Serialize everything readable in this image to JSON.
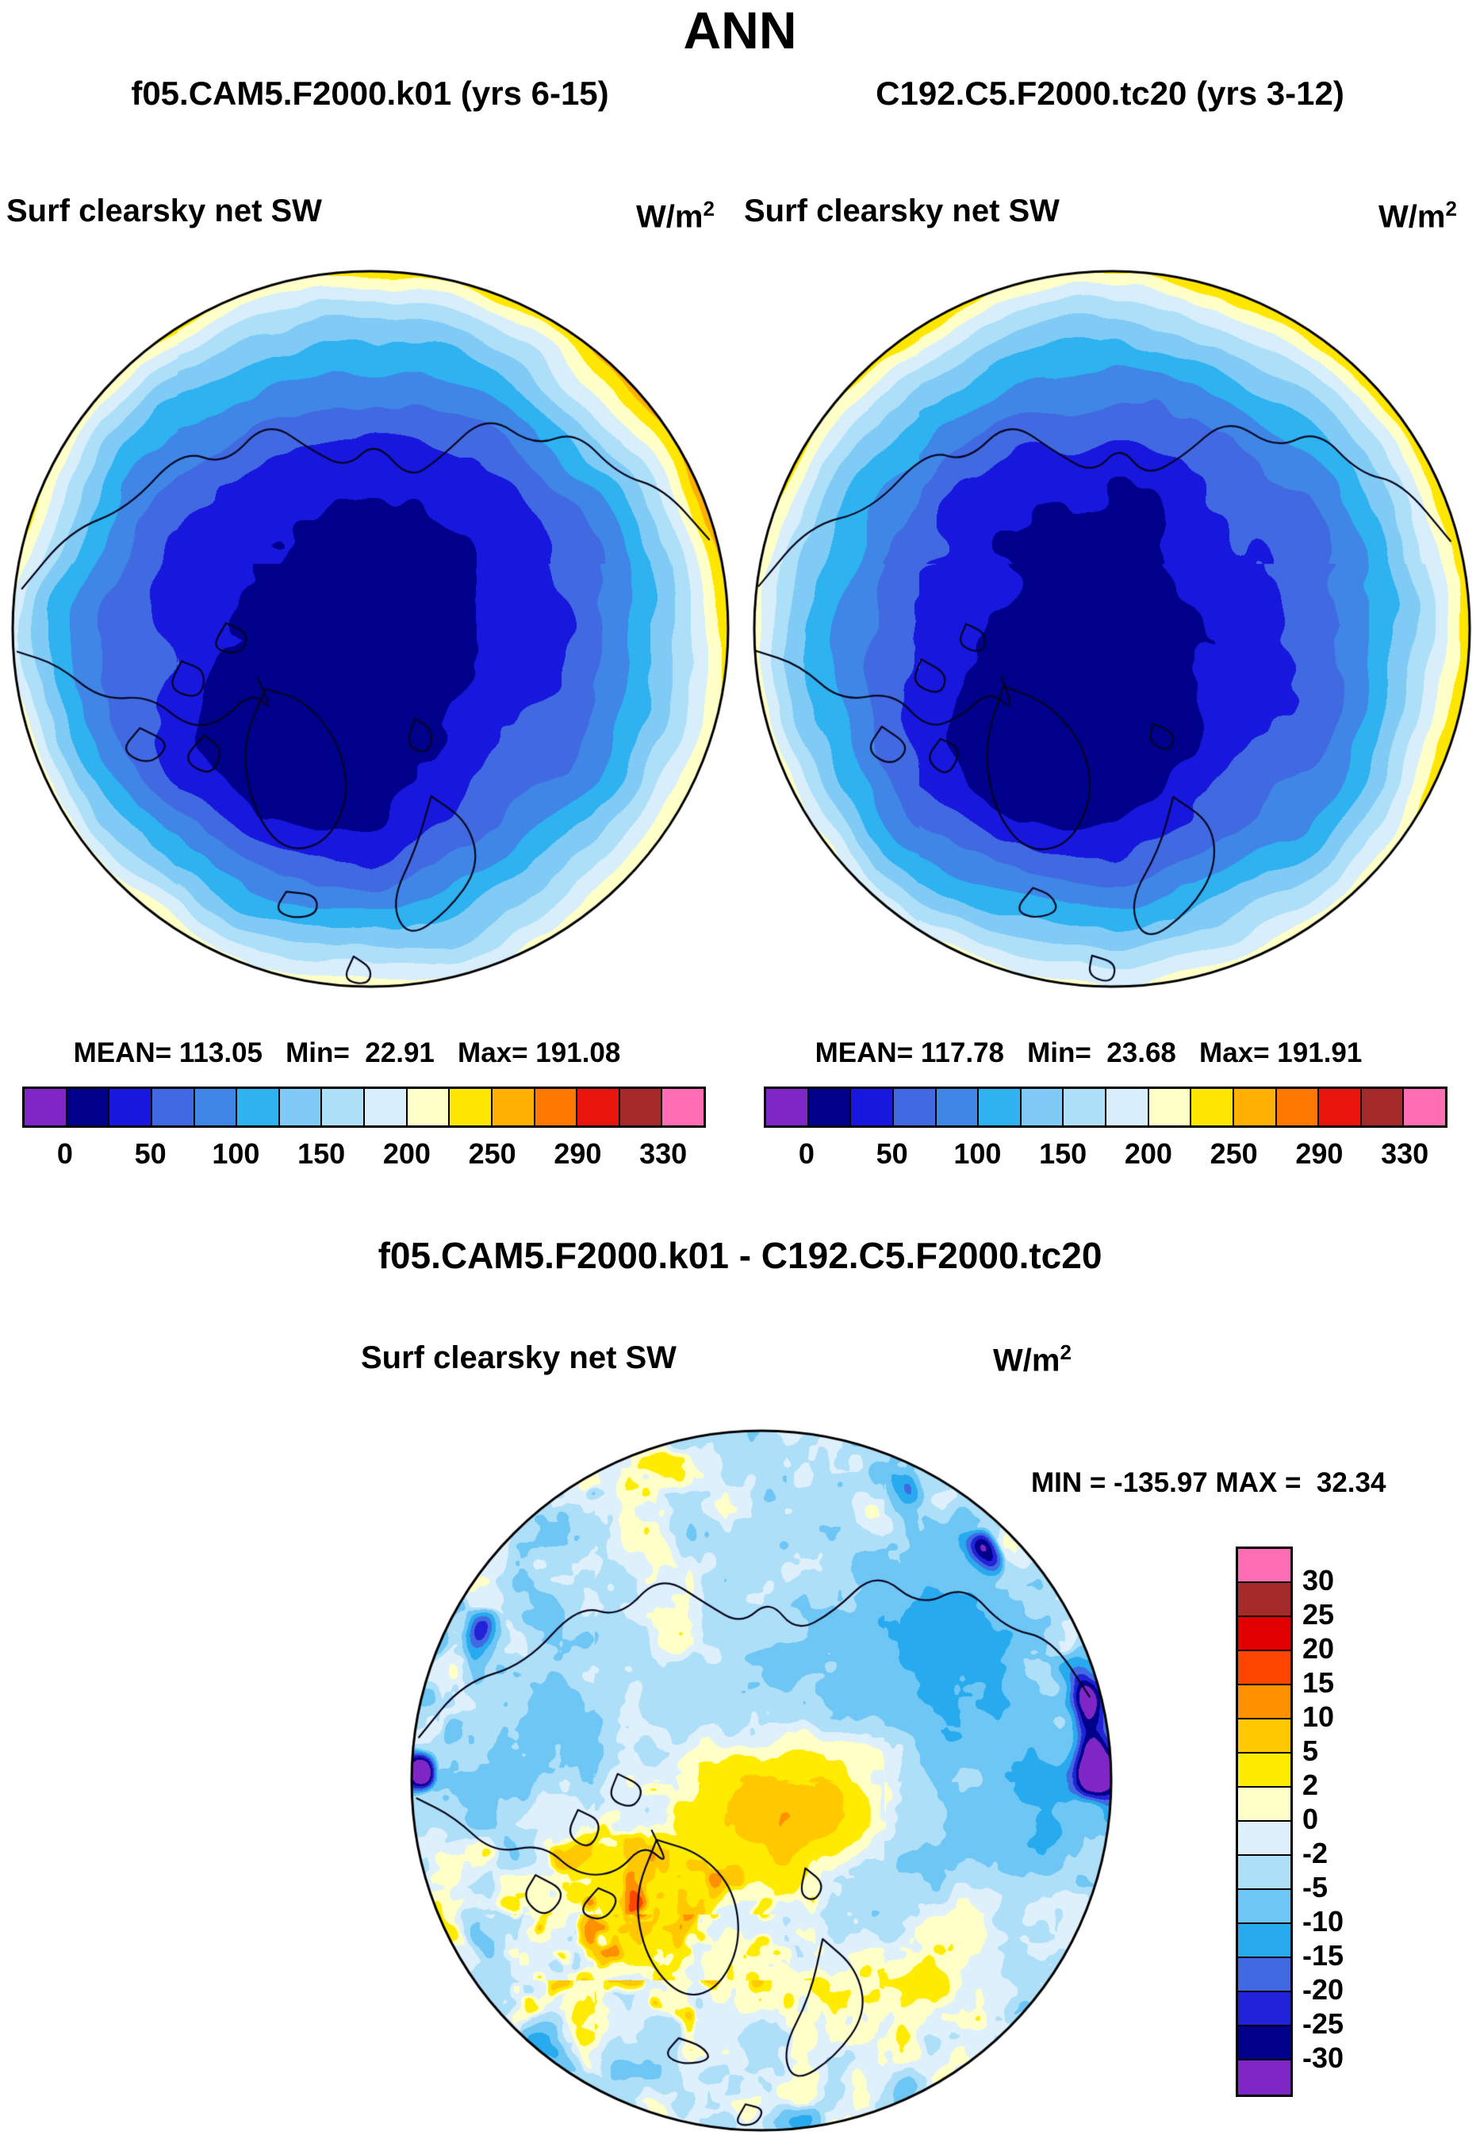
{
  "title": "ANN",
  "units": {
    "base": "W/m",
    "exp": "2"
  },
  "panels": [
    {
      "run_title": "f05.CAM5.F2000.k01 (yrs 6-15)",
      "field_label": "Surf clearsky net SW",
      "stats": "MEAN= 113.05   Min=  22.91   Max= 191.08"
    },
    {
      "run_title": "C192.C5.F2000.tc20 (yrs 3-12)",
      "field_label": "Surf clearsky net SW",
      "stats": "MEAN= 117.78   Min=  23.68   Max= 191.91"
    }
  ],
  "colorbar": {
    "colors": [
      "#8126C6",
      "#00008B",
      "#1717DD",
      "#4169E1",
      "#3F86E6",
      "#2EB2F0",
      "#7FCBF5",
      "#AEDFF8",
      "#D8EFFB",
      "#FFFFC8",
      "#FFE600",
      "#FFB000",
      "#FF7800",
      "#E8160C",
      "#A52A2A",
      "#FF6EB4"
    ],
    "ticks": [
      "0",
      "50",
      "100",
      "150",
      "200",
      "250",
      "290",
      "330"
    ]
  },
  "diff": {
    "title": "f05.CAM5.F2000.k01 - C192.C5.F2000.tc20",
    "field_label": "Surf clearsky net SW",
    "minmax": "MIN = -135.97 MAX =  32.34",
    "colorbar": {
      "colors_top_to_bottom": [
        "#FF6EB4",
        "#A52A2A",
        "#E00000",
        "#FF4600",
        "#FF9000",
        "#FFC800",
        "#FFEB00",
        "#FFFFC8",
        "#DEF0FB",
        "#AEDFF8",
        "#6EC6F5",
        "#28AAEE",
        "#4169E1",
        "#2222D8",
        "#00008B",
        "#8126C6"
      ],
      "labels": [
        "30",
        "25",
        "20",
        "15",
        "10",
        "5",
        "2",
        "0",
        "-2",
        "-5",
        "-10",
        "-15",
        "-20",
        "-25",
        "-30"
      ]
    }
  },
  "chart_data": {
    "type": "heatmap",
    "projection": "north_polar_stereographic",
    "variable": "Surf clearsky net SW",
    "units": "W/m2",
    "season": "ANN",
    "panels": [
      {
        "name": "f05.CAM5.F2000.k01 (yrs 6-15)",
        "mean": 113.05,
        "min": 22.91,
        "max": 191.08
      },
      {
        "name": "C192.C5.F2000.tc20 (yrs 3-12)",
        "mean": 117.78,
        "min": 23.68,
        "max": 191.91
      },
      {
        "name": "f05.CAM5.F2000.k01 - C192.C5.F2000.tc20",
        "min": -135.97,
        "max": 32.34
      }
    ],
    "value_thresholds": [
      0,
      25,
      50,
      75,
      100,
      125,
      150,
      175,
      200,
      225,
      250,
      270,
      290,
      310,
      330
    ],
    "tick_values": [
      0,
      50,
      100,
      150,
      200,
      250,
      290,
      330
    ],
    "diff_thresholds": [
      -30,
      -25,
      -20,
      -15,
      -10,
      -5,
      -2,
      0,
      2,
      5,
      10,
      15,
      20,
      25,
      30
    ],
    "diff_tick_values": [
      30,
      25,
      20,
      15,
      10,
      5,
      2,
      0,
      -2,
      -5,
      -10,
      -15,
      -20,
      -25,
      -30
    ],
    "legend_position": "below panels (horizontal), right of diff panel (vertical)",
    "grid": false
  }
}
